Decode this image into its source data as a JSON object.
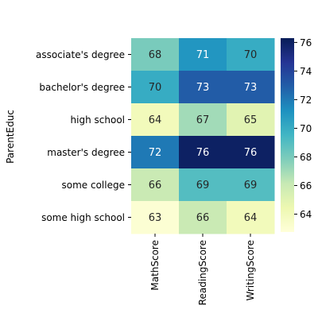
{
  "chart_data": {
    "type": "heatmap",
    "title": "",
    "xlabel": "",
    "ylabel": "ParentEduc",
    "x_categories": [
      "MathScore",
      "ReadingScore",
      "WritingScore"
    ],
    "y_categories": [
      "associate's degree",
      "bachelor's degree",
      "high school",
      "master's degree",
      "some college",
      "some high school"
    ],
    "values": [
      [
        68,
        71,
        70
      ],
      [
        70,
        73,
        73
      ],
      [
        64,
        67,
        65
      ],
      [
        72,
        76,
        76
      ],
      [
        66,
        69,
        69
      ],
      [
        63,
        66,
        64
      ]
    ],
    "labels": [
      [
        "68",
        "71",
        "70"
      ],
      [
        "70",
        "73",
        "73"
      ],
      [
        "64",
        "67",
        "65"
      ],
      [
        "72",
        "76",
        "76"
      ],
      [
        "66",
        "69",
        "69"
      ],
      [
        "63",
        "66",
        "64"
      ]
    ],
    "colormap": "YlGnBu",
    "colorbar": {
      "vmin": 62.75,
      "vmax": 76.3,
      "ticks": [
        64,
        66,
        68,
        70,
        72,
        74,
        76
      ],
      "tick_labels": [
        "64",
        "66",
        "68",
        "70",
        "72",
        "74",
        "76"
      ]
    },
    "colors": {
      "light_text": "#ffffff",
      "dark_text": "#262626",
      "stops": [
        "#ffffd9",
        "#edf8b1",
        "#c7e9b4",
        "#7fcdbb",
        "#41b6c4",
        "#1d91c0",
        "#225ea8",
        "#253494",
        "#081d58"
      ]
    }
  }
}
